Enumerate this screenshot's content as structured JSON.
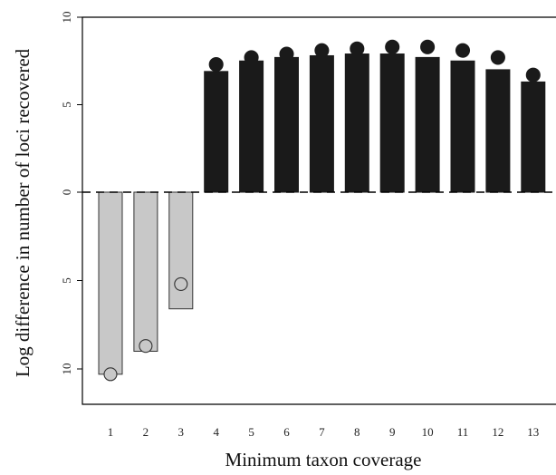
{
  "chart_data": {
    "type": "bar",
    "xlabel": "Minimum taxon coverage",
    "ylabel": "Log difference in number of loci recovered",
    "categories": [
      "1",
      "2",
      "3",
      "4",
      "5",
      "6",
      "7",
      "8",
      "9",
      "10",
      "11",
      "12",
      "13"
    ],
    "ylim": [
      -10.0,
      10.0
    ],
    "y_ticks": [
      10,
      5,
      0,
      -5,
      -10
    ],
    "y_tick_labels": [
      "10",
      "5",
      "0",
      "5",
      "10"
    ],
    "grid": false,
    "reference_line": {
      "y": 0,
      "style": "dashed"
    },
    "colors": {
      "negative_bar": "#c8c8c8",
      "positive_bar": "#1a1a1a",
      "negative_point": "#c8c8c8",
      "positive_point": "#1a1a1a",
      "outline": "#333333"
    },
    "series": [
      {
        "type": "bar",
        "values": [
          -10.3,
          -9.0,
          -6.6,
          6.9,
          7.5,
          7.7,
          7.8,
          7.9,
          7.9,
          7.7,
          7.5,
          7.0,
          6.3
        ]
      },
      {
        "type": "scatter",
        "values": [
          -10.3,
          -8.7,
          -5.2,
          7.3,
          7.7,
          7.9,
          8.1,
          8.2,
          8.3,
          8.3,
          8.1,
          7.7,
          6.7
        ]
      }
    ]
  }
}
